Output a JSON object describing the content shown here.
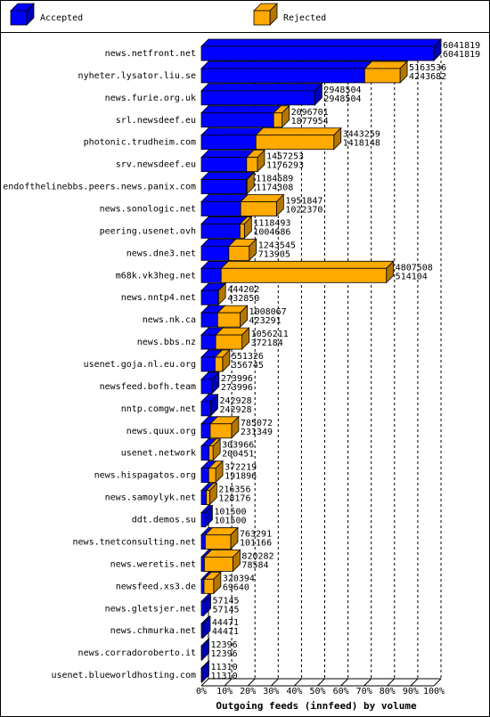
{
  "chart_data": {
    "type": "bar3d",
    "orientation": "horizontal",
    "stacked": true,
    "xlabel": "Outgoing feeds (innfeed) by volume",
    "categories": [
      "news.netfront.net",
      "nyheter.lysator.liu.se",
      "news.furie.org.uk",
      "srl.newsdeef.eu",
      "photonic.trudheim.com",
      "srv.newsdeef.eu",
      "endofthelinebbs.peers.news.panix.com",
      "news.sonologic.net",
      "peering.usenet.ovh",
      "news.dne3.net",
      "m68k.vk3heg.net",
      "news.nntp4.net",
      "news.nk.ca",
      "news.bbs.nz",
      "usenet.goja.nl.eu.org",
      "newsfeed.bofh.team",
      "nntp.comgw.net",
      "news.quux.org",
      "usenet.network",
      "news.hispagatos.org",
      "news.samoylyk.net",
      "ddt.demos.su",
      "news.tnetconsulting.net",
      "news.weretis.net",
      "newsfeed.xs3.de",
      "news.gletsjer.net",
      "news.chmurka.net",
      "news.corradoroberto.it",
      "usenet.blueworldhosting.com"
    ],
    "totals": [
      6041819,
      5163536,
      2948504,
      2096701,
      3443259,
      1457253,
      1184589,
      1951847,
      1118493,
      1243545,
      4807508,
      444202,
      1008067,
      1056211,
      551326,
      273996,
      242928,
      785072,
      303966,
      372219,
      216356,
      101500,
      763291,
      820282,
      320394,
      57145,
      44471,
      12396,
      11310
    ],
    "series": [
      {
        "name": "Accepted",
        "color": "#0000ff",
        "values": [
          6041819,
          4243682,
          2948504,
          1877954,
          1418148,
          1176293,
          1174308,
          1022370,
          1004686,
          713905,
          514104,
          432850,
          423291,
          372184,
          356745,
          273996,
          242928,
          231349,
          200451,
          191896,
          128176,
          101500,
          101166,
          78584,
          69640,
          57145,
          44471,
          12396,
          11310
        ]
      },
      {
        "name": "Rejected",
        "color": "#ffaa00",
        "values": [
          0,
          919854,
          0,
          218747,
          2025111,
          280960,
          10281,
          929477,
          113807,
          529640,
          4293404,
          11352,
          584776,
          684027,
          194581,
          0,
          0,
          553723,
          103515,
          180323,
          88180,
          0,
          662125,
          741698,
          250754,
          0,
          0,
          0,
          0
        ]
      }
    ],
    "xlim": [
      0,
      100
    ],
    "xticks": [
      {
        "value": 0,
        "label": "0%"
      },
      {
        "value": 10,
        "label": "10%"
      },
      {
        "value": 20,
        "label": "20%"
      },
      {
        "value": 30,
        "label": "30%"
      },
      {
        "value": 40,
        "label": "40%"
      },
      {
        "value": 50,
        "label": "50%"
      },
      {
        "value": 60,
        "label": "60%"
      },
      {
        "value": 70,
        "label": "70%"
      },
      {
        "value": 80,
        "label": "80%"
      },
      {
        "value": 90,
        "label": "90%"
      },
      {
        "value": 100,
        "label": "100%"
      }
    ],
    "grid": true
  }
}
